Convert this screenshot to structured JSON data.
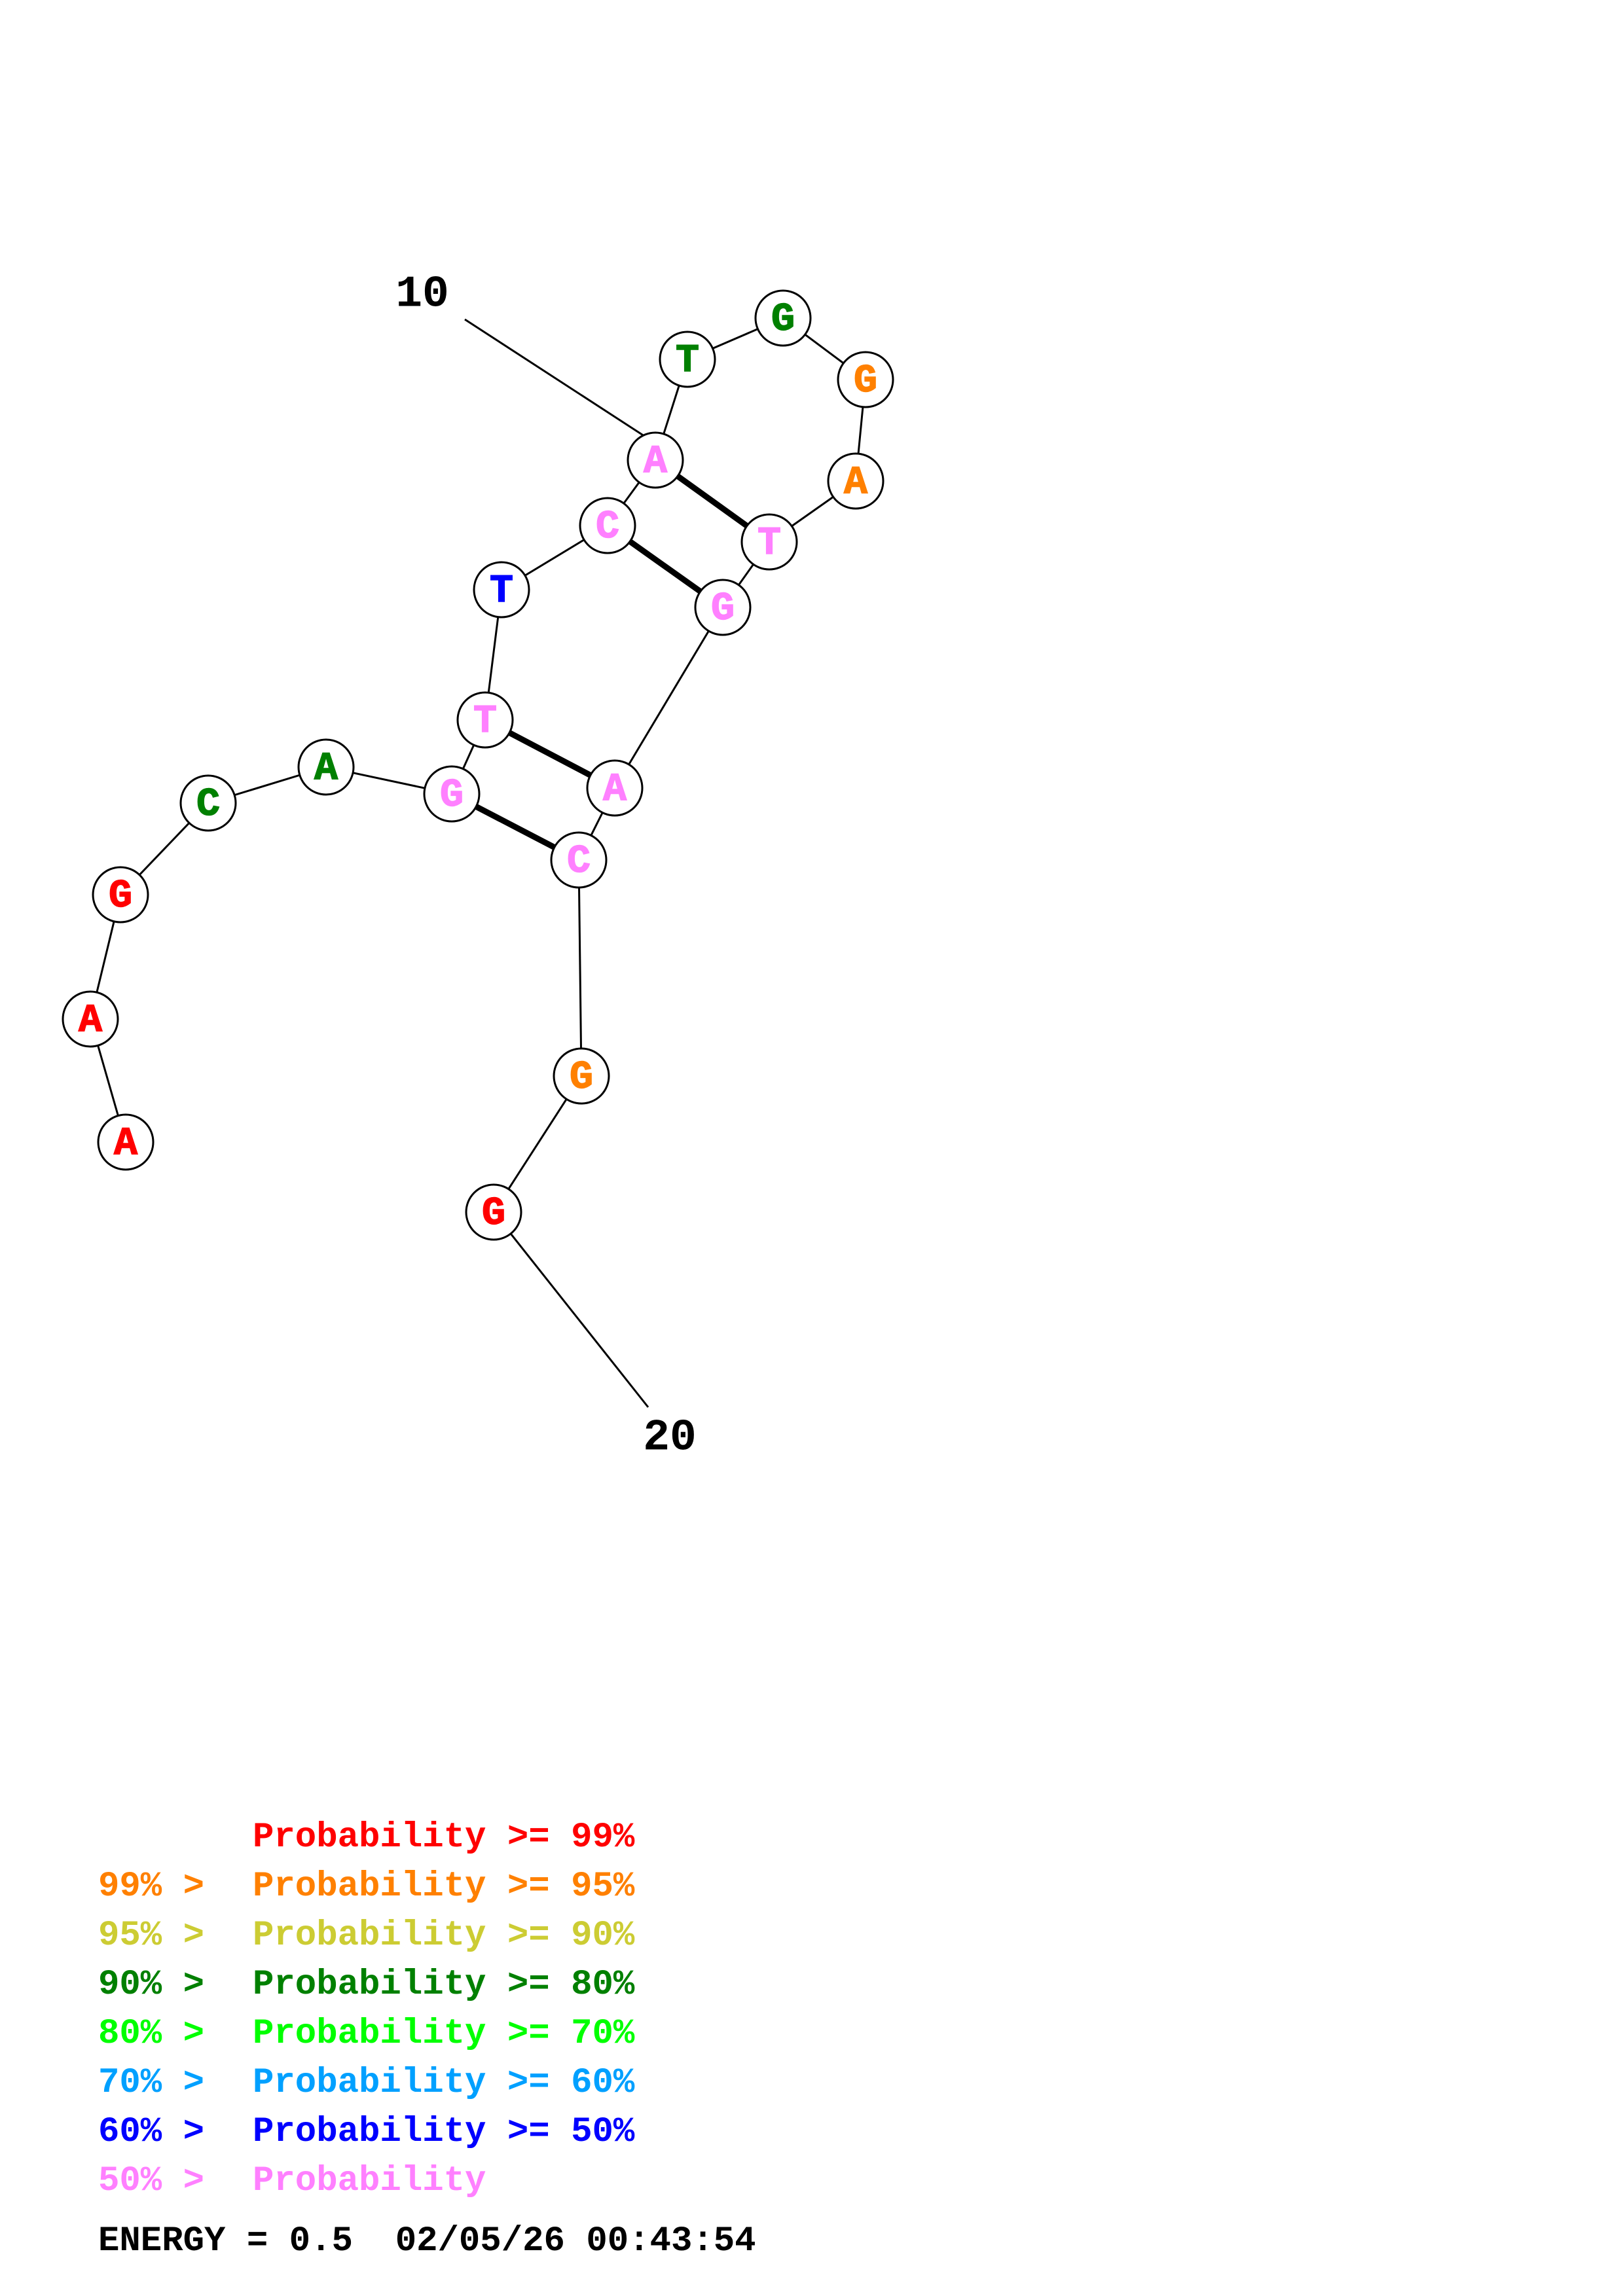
{
  "colors": {
    "p99": "#ff0000",
    "p95": "#ff8000",
    "p90": "#cccc33",
    "p80": "#008000",
    "p70": "#00ff00",
    "p60": "#00a0ff",
    "p50": "#0000ff",
    "plow": "#ff80ff"
  },
  "nucleotides": [
    {
      "base": "A",
      "color": "#ff0000"
    },
    {
      "base": "A",
      "color": "#ff0000"
    },
    {
      "base": "G",
      "color": "#ff0000"
    },
    {
      "base": "C",
      "color": "#008000"
    },
    {
      "base": "A",
      "color": "#008000"
    },
    {
      "base": "G",
      "color": "#ff80ff"
    },
    {
      "base": "T",
      "color": "#ff80ff"
    },
    {
      "base": "T",
      "color": "#0000ff"
    },
    {
      "base": "C",
      "color": "#ff80ff"
    },
    {
      "base": "A",
      "color": "#ff80ff"
    },
    {
      "base": "T",
      "color": "#008000"
    },
    {
      "base": "G",
      "color": "#008000"
    },
    {
      "base": "G",
      "color": "#ff8000"
    },
    {
      "base": "A",
      "color": "#ff8000"
    },
    {
      "base": "T",
      "color": "#ff80ff"
    },
    {
      "base": "G",
      "color": "#ff80ff"
    },
    {
      "base": "A",
      "color": "#ff80ff"
    },
    {
      "base": "C",
      "color": "#ff80ff"
    },
    {
      "base": "G",
      "color": "#ff8000"
    },
    {
      "base": "G",
      "color": "#ff0000"
    }
  ],
  "pairs": [
    [
      6,
      18
    ],
    [
      7,
      17
    ],
    [
      9,
      16
    ],
    [
      10,
      15
    ]
  ],
  "index_labels": [
    {
      "text": "10",
      "nucleotide": 10
    },
    {
      "text": "20",
      "nucleotide": 20
    }
  ],
  "legend": [
    {
      "prefix": "",
      "text": "Probability >= 99%",
      "color": "#ff0000"
    },
    {
      "prefix": "99% > ",
      "text": "Probability >= 95%",
      "color": "#ff8000"
    },
    {
      "prefix": "95% > ",
      "text": "Probability >= 90%",
      "color": "#cccc33"
    },
    {
      "prefix": "90% > ",
      "text": "Probability >= 80%",
      "color": "#008000"
    },
    {
      "prefix": "80% > ",
      "text": "Probability >= 70%",
      "color": "#00ff00"
    },
    {
      "prefix": "70% > ",
      "text": "Probability >= 60%",
      "color": "#00a0ff"
    },
    {
      "prefix": "60% > ",
      "text": "Probability >= 50%",
      "color": "#0000ff"
    },
    {
      "prefix": "50% > ",
      "text": "Probability",
      "color": "#ff80ff"
    }
  ],
  "footer": {
    "energy": "ENERGY = 0.5",
    "timestamp": "02/05/26 00:43:54"
  }
}
